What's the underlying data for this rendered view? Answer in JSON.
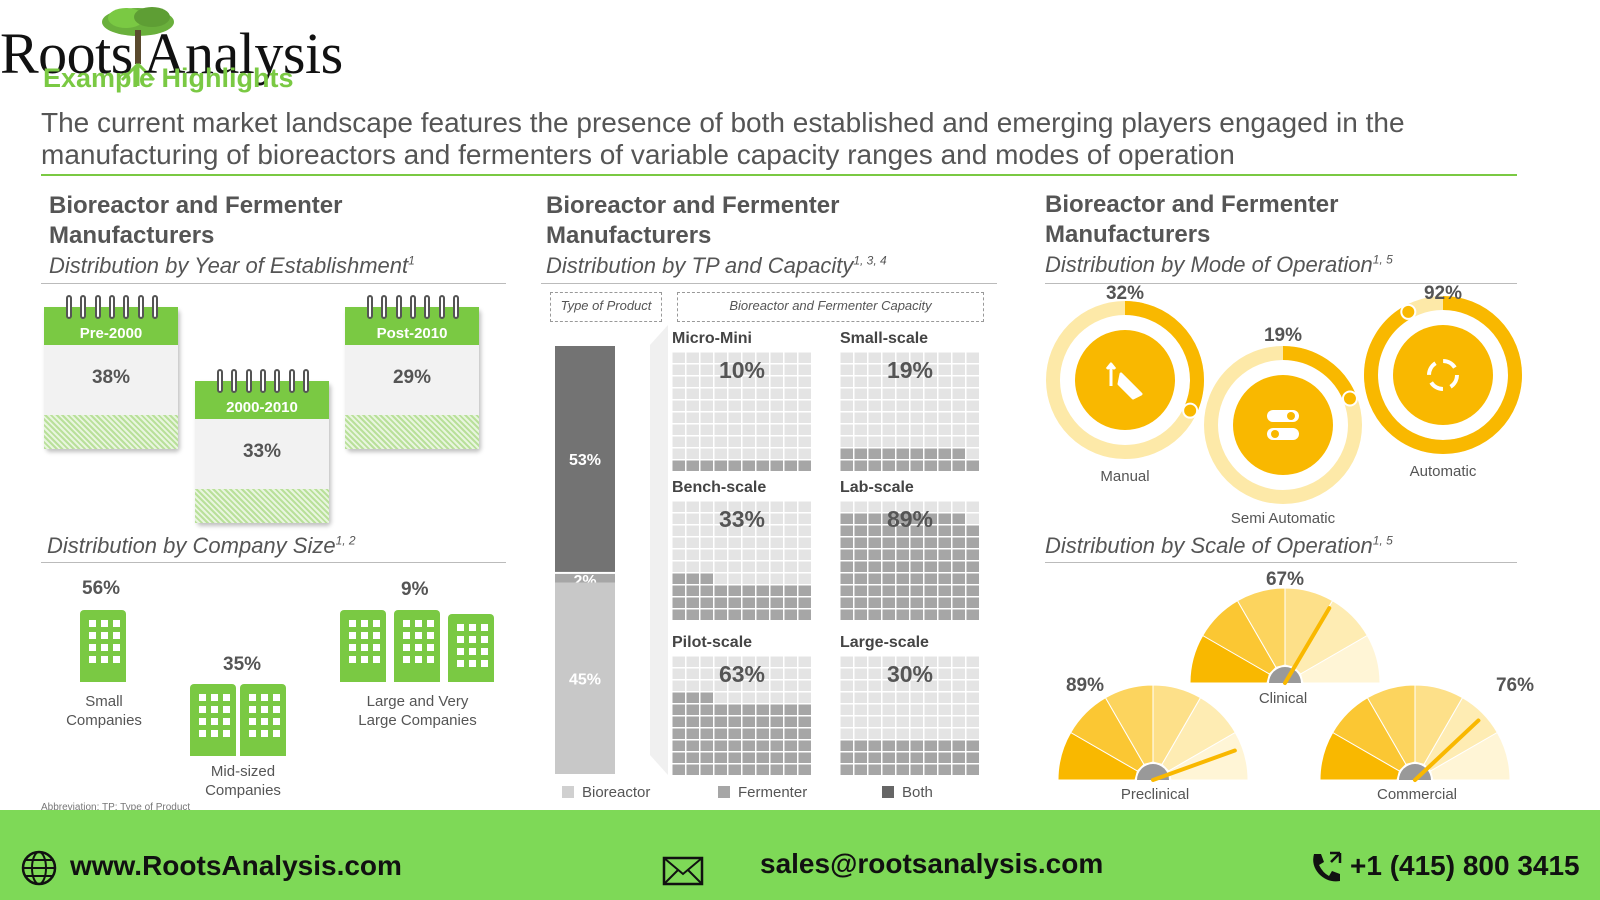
{
  "header": {
    "brand": "Roots Analysis",
    "section": "Example Highlights",
    "subtitle": "The current market landscape features the presence of both established and emerging players engaged in the manufacturing of bioreactors and fermenters of variable capacity ranges and modes of operation"
  },
  "panels": {
    "title": "Bioreactor and Fermenter Manufacturers",
    "year_sub": "Distribution by Year of Establishment",
    "year_sup": "1",
    "tp_sub": "Distribution by TP and Capacity",
    "tp_sup": "1, 3, 4",
    "mode_sub": "Distribution by Mode of Operation",
    "mode_sup": "1, 5",
    "size_sub": "Distribution by Company Size",
    "size_sup": "1, 2",
    "scale_sub": "Distribution by Scale of Operation",
    "scale_sup": "1, 5",
    "type_box": "Type of Product",
    "cap_box": "Bioreactor and Fermenter Capacity",
    "abbrev": "Abbreviation: TP: Type of Product"
  },
  "colors": {
    "green": "#7ac943",
    "amber": "#f9b800",
    "pale_amber": "#fde9a8",
    "dark_gray": "#737373",
    "mid_gray": "#a6a6a6",
    "light_gray": "#bfbfbf"
  },
  "chart_data": [
    {
      "type": "bar",
      "title": "Distribution by Year of Establishment",
      "categories": [
        "Pre-2000",
        "2000-2010",
        "Post-2010"
      ],
      "values": [
        38,
        33,
        29
      ],
      "labels": [
        "38%",
        "33%",
        "29%"
      ],
      "icon": "calendar-icon"
    },
    {
      "type": "bar",
      "title": "Distribution by Company Size",
      "categories": [
        "Small Companies",
        "Mid-sized Companies",
        "Large and Very Large Companies"
      ],
      "labels": [
        "Small\nCompanies",
        "Mid-sized\nCompanies",
        "Large and Very\nLarge Companies"
      ],
      "values": [
        56,
        35,
        9
      ],
      "pct_labels": [
        "56%",
        "35%",
        "9%"
      ],
      "icon": "building-icon"
    },
    {
      "type": "bar",
      "title": "Distribution by TP and Capacity",
      "stacked": true,
      "categories": [
        "Type of Product"
      ],
      "series": [
        {
          "name": "Both",
          "values": [
            53
          ],
          "label": "53%"
        },
        {
          "name": "Fermenter",
          "values": [
            2
          ],
          "label": "2%"
        },
        {
          "name": "Bioreactor",
          "values": [
            45
          ],
          "label": "45%"
        }
      ],
      "legend": [
        "Bioreactor",
        "Fermenter",
        "Both"
      ]
    },
    {
      "type": "heatmap",
      "title": "Bioreactor and Fermenter Capacity",
      "categories": [
        "Micro-Mini",
        "Small-scale",
        "Bench-scale",
        "Lab-scale",
        "Pilot-scale",
        "Large-scale"
      ],
      "values": [
        10,
        19,
        33,
        89,
        63,
        30
      ],
      "labels": [
        "10%",
        "19%",
        "33%",
        "89%",
        "63%",
        "30%"
      ]
    },
    {
      "type": "pie",
      "title": "Distribution by Mode of Operation",
      "categories": [
        "Manual",
        "Semi Automatic",
        "Automatic"
      ],
      "values": [
        32,
        19,
        92
      ],
      "labels": [
        "32%",
        "19%",
        "92%"
      ],
      "icons": [
        "hand-swipe-icon",
        "toggle-icon",
        "cycle-icon"
      ]
    },
    {
      "type": "pie",
      "title": "Distribution by Scale of Operation",
      "categories": [
        "Clinical",
        "Preclinical",
        "Commercial"
      ],
      "values": [
        67,
        89,
        76
      ],
      "labels": [
        "67%",
        "89%",
        "76%"
      ],
      "icon": "gauge-icon"
    }
  ],
  "footer": {
    "website": "www.RootsAnalysis.com",
    "email": "sales@rootsanalysis.com",
    "phone": "+1 (415) 800 3415"
  }
}
